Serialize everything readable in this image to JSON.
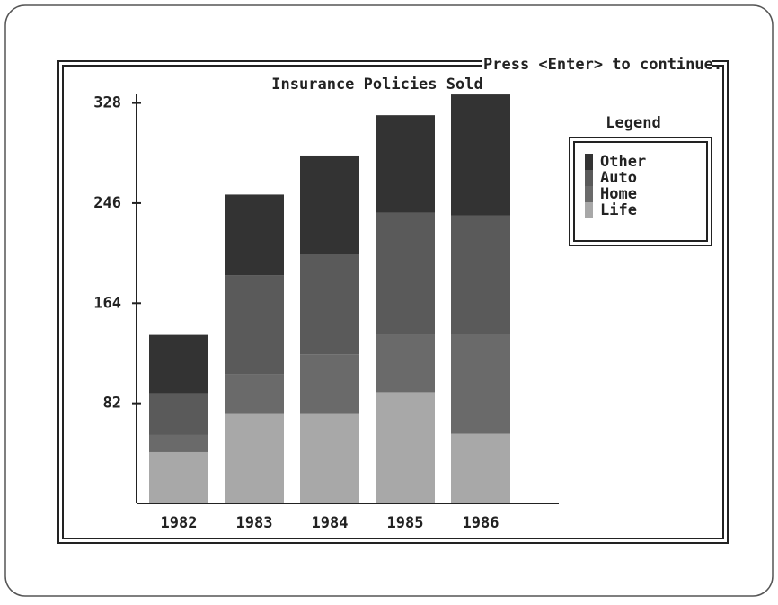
{
  "chart_data": {
    "type": "bar",
    "stacked": true,
    "title": "Insurance Policies Sold",
    "prompt": "Press <Enter> to continue.",
    "legend_title": "Legend",
    "legend": "right",
    "categories": [
      "1982",
      "1983",
      "1984",
      "1985",
      "1986"
    ],
    "series": [
      {
        "name": "Life",
        "color": "#a8a8a8",
        "values": [
          42,
          74,
          74,
          91,
          57
        ]
      },
      {
        "name": "Home",
        "color": "#6a6a6a",
        "values": [
          14,
          32,
          48,
          47,
          82
        ]
      },
      {
        "name": "Auto",
        "color": "#5a5a5a",
        "values": [
          34,
          81,
          82,
          100,
          97
        ]
      },
      {
        "name": "Other",
        "color": "#333333",
        "values": [
          48,
          66,
          81,
          80,
          99
        ]
      }
    ],
    "ylim": [
      0,
      338
    ],
    "yticks": [
      82,
      164,
      246,
      328
    ]
  }
}
